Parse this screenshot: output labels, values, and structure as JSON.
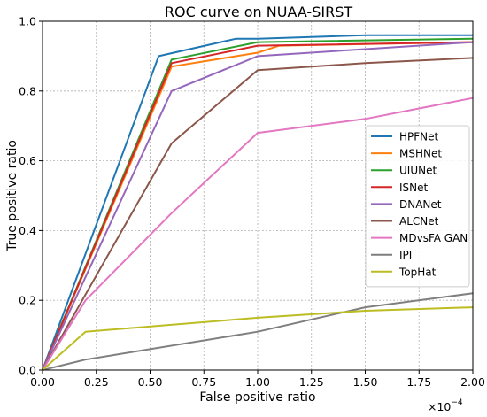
{
  "chart_data": {
    "type": "line",
    "title": "ROC curve on NUAA-SIRST",
    "xlabel": "False positive ratio",
    "ylabel": "True positive ratio",
    "x_multiplier": "×10",
    "x_multiplier_exp": "−4",
    "xlim": [
      0,
      2.0
    ],
    "ylim": [
      0,
      1.0
    ],
    "x_ticks": [
      "0.00",
      "0.25",
      "0.50",
      "0.75",
      "1.00",
      "1.25",
      "1.50",
      "1.75",
      "2.00"
    ],
    "y_ticks": [
      "0.0",
      "0.2",
      "0.4",
      "0.6",
      "0.8",
      "1.0"
    ],
    "grid": true,
    "legend_position": "center-right",
    "series": [
      {
        "name": "HPFNet",
        "color": "#1f77b4",
        "points": [
          [
            0,
            0
          ],
          [
            0.54,
            0.9
          ],
          [
            0.9,
            0.95
          ],
          [
            1.0,
            0.95
          ],
          [
            1.5,
            0.96
          ],
          [
            2.0,
            0.96
          ]
        ]
      },
      {
        "name": "MSHNet",
        "color": "#ff7f0e",
        "points": [
          [
            0,
            0
          ],
          [
            0.6,
            0.87
          ],
          [
            1.0,
            0.91
          ],
          [
            1.1,
            0.93
          ],
          [
            2.0,
            0.94
          ]
        ]
      },
      {
        "name": "UIUNet",
        "color": "#2ca02c",
        "points": [
          [
            0,
            0
          ],
          [
            0.6,
            0.89
          ],
          [
            1.0,
            0.94
          ],
          [
            2.0,
            0.95
          ]
        ]
      },
      {
        "name": "ISNet",
        "color": "#d62728",
        "points": [
          [
            0,
            0
          ],
          [
            0.6,
            0.88
          ],
          [
            1.0,
            0.93
          ],
          [
            2.0,
            0.94
          ]
        ]
      },
      {
        "name": "DNANet",
        "color": "#9467bd",
        "points": [
          [
            0,
            0
          ],
          [
            0.6,
            0.8
          ],
          [
            1.0,
            0.9
          ],
          [
            1.5,
            0.92
          ],
          [
            2.0,
            0.94
          ]
        ]
      },
      {
        "name": "ALCNet",
        "color": "#8c564b",
        "points": [
          [
            0,
            0
          ],
          [
            0.6,
            0.65
          ],
          [
            1.0,
            0.86
          ],
          [
            1.5,
            0.88
          ],
          [
            2.0,
            0.895
          ]
        ]
      },
      {
        "name": "MDvsFA GAN",
        "color": "#e377c2",
        "points": [
          [
            0,
            0
          ],
          [
            0.2,
            0.2
          ],
          [
            0.6,
            0.45
          ],
          [
            1.0,
            0.68
          ],
          [
            1.5,
            0.72
          ],
          [
            2.0,
            0.78
          ]
        ]
      },
      {
        "name": "IPI",
        "color": "#7f7f7f",
        "points": [
          [
            0,
            0
          ],
          [
            0.2,
            0.03
          ],
          [
            1.0,
            0.11
          ],
          [
            1.5,
            0.18
          ],
          [
            2.0,
            0.22
          ]
        ]
      },
      {
        "name": "TopHat",
        "color": "#bcbd22",
        "points": [
          [
            0,
            0
          ],
          [
            0.2,
            0.11
          ],
          [
            1.0,
            0.15
          ],
          [
            1.5,
            0.17
          ],
          [
            2.0,
            0.18
          ]
        ]
      }
    ]
  }
}
